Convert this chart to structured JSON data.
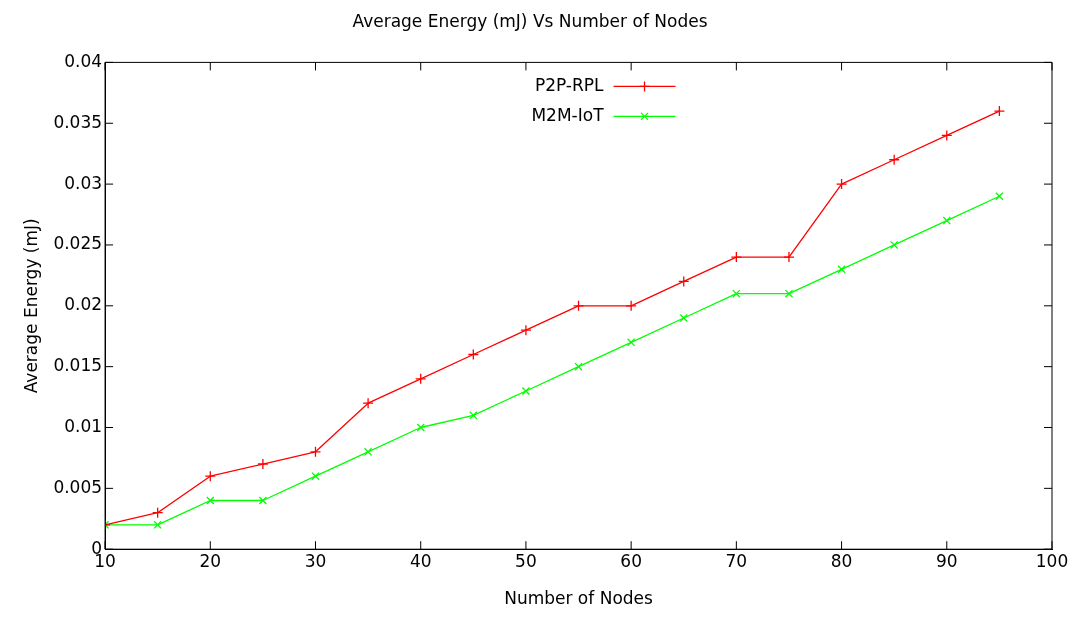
{
  "chart_data": {
    "type": "line",
    "title": "Average Energy (mJ) Vs Number of Nodes",
    "xlabel": "Number of Nodes",
    "ylabel": "Average Energy (mJ)",
    "x": [
      10,
      15,
      20,
      25,
      30,
      35,
      40,
      45,
      50,
      55,
      60,
      65,
      70,
      75,
      80,
      85,
      90,
      95
    ],
    "series": [
      {
        "name": "P2P-RPL",
        "color": "#ff0000",
        "marker": "plus",
        "values": [
          0.002,
          0.003,
          0.006,
          0.007,
          0.008,
          0.012,
          0.014,
          0.016,
          0.018,
          0.02,
          0.02,
          0.022,
          0.024,
          0.024,
          0.03,
          0.032,
          0.034,
          0.036
        ]
      },
      {
        "name": "M2M-IoT",
        "color": "#00ff00",
        "marker": "cross",
        "values": [
          0.002,
          0.002,
          0.004,
          0.004,
          0.006,
          0.008,
          0.01,
          0.011,
          0.013,
          0.015,
          0.017,
          0.019,
          0.021,
          0.021,
          0.023,
          0.025,
          0.027,
          0.029
        ]
      }
    ],
    "xlim": [
      10,
      100
    ],
    "xticks": [
      10,
      20,
      30,
      40,
      50,
      60,
      70,
      80,
      90,
      100
    ],
    "ylim": [
      0,
      0.04
    ],
    "yticks": [
      0,
      0.005,
      0.01,
      0.015,
      0.02,
      0.025,
      0.03,
      0.035,
      0.04
    ],
    "grid": false,
    "legend": "top",
    "line_style": "solid"
  }
}
